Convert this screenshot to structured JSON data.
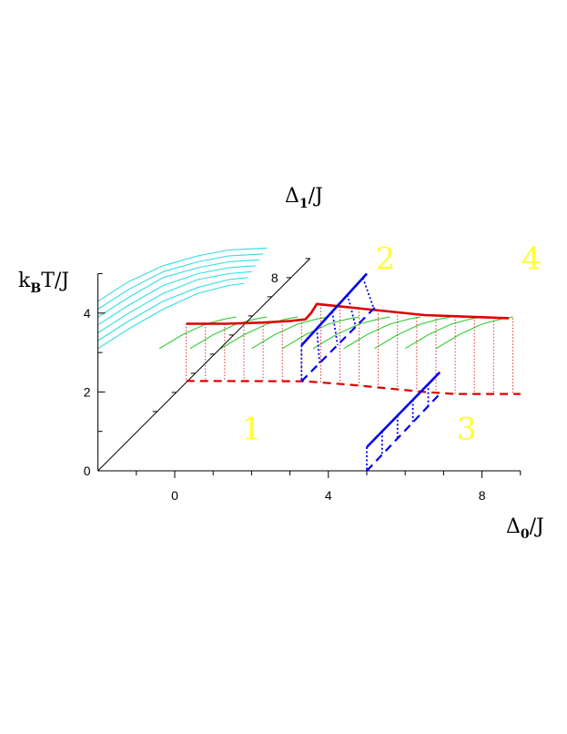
{
  "chart_data": {
    "type": "line",
    "projection": "oblique-3d",
    "axes": {
      "x": {
        "label_main": "Δ",
        "label_sub": "0",
        "label_tail": "/J",
        "range": [
          -2,
          9
        ],
        "ticks": [
          0,
          4,
          8
        ],
        "minor_ticks": [
          -1,
          1,
          2,
          3,
          5,
          6,
          7,
          9
        ]
      },
      "y": {
        "label_main": "Δ",
        "label_sub": "1",
        "label_tail": "/J",
        "range": [
          0,
          9
        ],
        "ticks": [
          8
        ],
        "minor_ticks": [
          1,
          2,
          3,
          4,
          5,
          6,
          7,
          9
        ]
      },
      "z": {
        "label_main": "k",
        "label_sub": "B",
        "label_tail": "T/J",
        "range": [
          0,
          5
        ],
        "ticks": [
          0,
          2,
          4
        ],
        "minor_ticks": [
          1,
          3,
          5
        ]
      }
    },
    "region_labels": [
      {
        "text": "1",
        "d0": 2,
        "d1": 0,
        "t": 0.8
      },
      {
        "text": "2",
        "d0": 2.5,
        "d1": 6,
        "t": 2.2
      },
      {
        "text": "3",
        "d0": 7.6,
        "d1": 0,
        "t": 0.8
      },
      {
        "text": "4",
        "d0": 6.3,
        "d1": 6,
        "t": 2.2
      }
    ],
    "series": [
      {
        "role": "critical-temperature-upper",
        "color": "#dd0000",
        "style": "solid",
        "points": [
          {
            "d0": 0.3,
            "d1": 0,
            "t": 3.73
          },
          {
            "d0": 1.3,
            "d1": 0,
            "t": 3.73
          },
          {
            "d0": 2.3,
            "d1": 0,
            "t": 3.76
          },
          {
            "d0": 3.0,
            "d1": 0,
            "t": 3.8
          },
          {
            "d0": 3.4,
            "d1": 0,
            "t": 3.84
          },
          {
            "d0": 3.55,
            "d1": 0,
            "t": 4.0
          },
          {
            "d0": 3.7,
            "d1": 0,
            "t": 4.23
          },
          {
            "d0": 5.0,
            "d1": 0,
            "t": 4.1
          },
          {
            "d0": 6.5,
            "d1": 0,
            "t": 3.95
          },
          {
            "d0": 8.7,
            "d1": 0,
            "t": 3.87
          }
        ]
      },
      {
        "role": "critical-temperature-lower",
        "color": "#dd0000",
        "style": "dashed",
        "points": [
          {
            "d0": 0.3,
            "d1": 0,
            "t": 2.28
          },
          {
            "d0": 3.4,
            "d1": 0,
            "t": 2.27
          },
          {
            "d0": 4.6,
            "d1": 0,
            "t": 2.18
          },
          {
            "d0": 6.5,
            "d1": 0,
            "t": 2.0
          },
          {
            "d0": 7.3,
            "d1": 0,
            "t": 1.95
          },
          {
            "d0": 9.0,
            "d1": 0,
            "t": 1.95
          }
        ]
      },
      {
        "role": "tricritical-upper-front",
        "color": "#0000ee",
        "style": "solid",
        "points": [
          {
            "d0": 5.0,
            "d1": 0,
            "t": 0.6
          },
          {
            "d0": 6.9,
            "d1": 0,
            "t": 2.5
          }
        ]
      },
      {
        "role": "tricritical-lower-front",
        "color": "#0000ee",
        "style": "dashed",
        "points": [
          {
            "d0": 5.0,
            "d1": 0,
            "t": 0.0
          },
          {
            "d0": 6.9,
            "d1": 0,
            "t": 1.95
          }
        ]
      },
      {
        "role": "tricritical-upper-back",
        "color": "#0000ee",
        "style": "solid",
        "points": [
          {
            "d0": 3.3,
            "d1": 0,
            "t": 3.18
          },
          {
            "d0": 5.0,
            "d1": 0,
            "t": 5.0
          }
        ]
      },
      {
        "role": "tricritical-lower-back",
        "color": "#0000ee",
        "style": "dashed",
        "points": [
          {
            "d0": 3.3,
            "d1": 0,
            "t": 2.27
          },
          {
            "d0": 5.3,
            "d1": 0,
            "t": 4.23
          }
        ]
      }
    ],
    "surface_curves_green": [
      [
        [
          -0.4,
          3.1
        ],
        [
          0.2,
          3.45
        ],
        [
          0.8,
          3.72
        ],
        [
          1.3,
          3.85
        ],
        [
          1.6,
          3.9
        ]
      ],
      [
        [
          0.4,
          3.1
        ],
        [
          1.0,
          3.45
        ],
        [
          1.6,
          3.72
        ],
        [
          2.1,
          3.85
        ],
        [
          2.4,
          3.9
        ]
      ],
      [
        [
          1.2,
          3.1
        ],
        [
          1.8,
          3.45
        ],
        [
          2.4,
          3.72
        ],
        [
          2.9,
          3.85
        ],
        [
          3.2,
          3.9
        ]
      ],
      [
        [
          2.0,
          3.1
        ],
        [
          2.6,
          3.45
        ],
        [
          3.2,
          3.72
        ],
        [
          3.7,
          3.85
        ],
        [
          4.0,
          3.9
        ]
      ],
      [
        [
          2.8,
          3.1
        ],
        [
          3.4,
          3.45
        ],
        [
          4.0,
          3.72
        ],
        [
          4.5,
          3.85
        ],
        [
          4.8,
          3.9
        ]
      ],
      [
        [
          3.6,
          3.1
        ],
        [
          4.2,
          3.45
        ],
        [
          4.8,
          3.72
        ],
        [
          5.3,
          3.85
        ],
        [
          5.6,
          3.9
        ]
      ],
      [
        [
          4.4,
          3.1
        ],
        [
          5.0,
          3.45
        ],
        [
          5.6,
          3.72
        ],
        [
          6.1,
          3.85
        ],
        [
          6.4,
          3.9
        ]
      ],
      [
        [
          5.2,
          3.1
        ],
        [
          5.8,
          3.45
        ],
        [
          6.4,
          3.72
        ],
        [
          6.9,
          3.85
        ],
        [
          7.2,
          3.9
        ]
      ],
      [
        [
          6.0,
          3.1
        ],
        [
          6.6,
          3.45
        ],
        [
          7.2,
          3.72
        ],
        [
          7.7,
          3.85
        ],
        [
          8.0,
          3.9
        ]
      ],
      [
        [
          6.8,
          3.1
        ],
        [
          7.4,
          3.45
        ],
        [
          8.0,
          3.72
        ],
        [
          8.5,
          3.85
        ],
        [
          8.8,
          3.9
        ]
      ]
    ],
    "surface_curves_cyan": [
      [
        [
          -2.0,
          3.1
        ],
        [
          -1.2,
          3.6
        ],
        [
          -0.3,
          4.1
        ],
        [
          0.6,
          4.5
        ],
        [
          1.4,
          4.7
        ],
        [
          1.8,
          4.75
        ]
      ],
      [
        [
          -2.0,
          3.3
        ],
        [
          -1.2,
          3.8
        ],
        [
          -0.3,
          4.3
        ],
        [
          0.6,
          4.65
        ],
        [
          1.4,
          4.85
        ],
        [
          1.9,
          4.9
        ]
      ],
      [
        [
          -2.0,
          3.5
        ],
        [
          -1.2,
          4.0
        ],
        [
          -0.3,
          4.5
        ],
        [
          0.6,
          4.85
        ],
        [
          1.4,
          5.0
        ],
        [
          2.0,
          5.05
        ]
      ],
      [
        [
          -2.0,
          3.7
        ],
        [
          -1.2,
          4.2
        ],
        [
          -0.3,
          4.7
        ],
        [
          0.6,
          5.0
        ],
        [
          1.4,
          5.15
        ],
        [
          2.1,
          5.2
        ]
      ],
      [
        [
          -2.0,
          3.9
        ],
        [
          -1.2,
          4.4
        ],
        [
          -0.3,
          4.9
        ],
        [
          0.6,
          5.15
        ],
        [
          1.4,
          5.3
        ],
        [
          2.2,
          5.35
        ]
      ],
      [
        [
          -2.0,
          4.1
        ],
        [
          -1.2,
          4.6
        ],
        [
          -0.3,
          5.05
        ],
        [
          0.6,
          5.3
        ],
        [
          1.4,
          5.45
        ],
        [
          2.3,
          5.5
        ]
      ],
      [
        [
          -2.0,
          4.3
        ],
        [
          -1.2,
          4.8
        ],
        [
          -0.3,
          5.2
        ],
        [
          0.6,
          5.45
        ],
        [
          1.4,
          5.6
        ],
        [
          2.4,
          5.65
        ]
      ]
    ],
    "droplines": {
      "red_d0": [
        0.3,
        0.8,
        1.3,
        1.8,
        2.3,
        2.8,
        3.3,
        3.8,
        4.3,
        4.8,
        5.3,
        5.8,
        6.3,
        6.8,
        7.3,
        7.8,
        8.3,
        8.8
      ],
      "blue_front_d0": [
        5.0,
        5.4,
        5.8,
        6.2,
        6.6
      ],
      "blue_back_d0": [
        3.3,
        3.7,
        4.1,
        4.5,
        4.9
      ]
    }
  }
}
